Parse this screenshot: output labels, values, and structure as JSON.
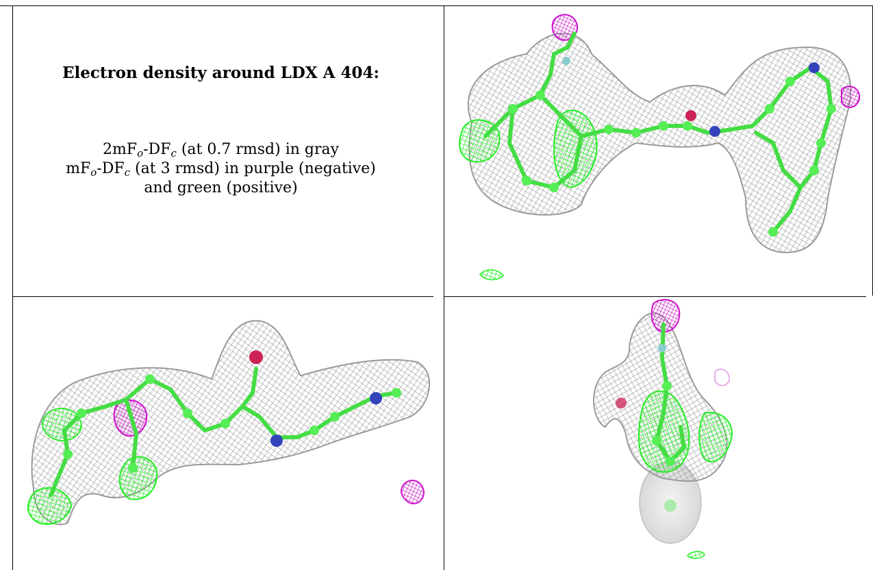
{
  "caption": {
    "title": "Electron density around LDX A 404:",
    "line1": [
      {
        "t": "2mF"
      },
      {
        "s": "o"
      },
      {
        "t": "-DF"
      },
      {
        "s": "c"
      },
      {
        "t": " (at 0.7 rmsd) in gray"
      }
    ],
    "line2": [
      {
        "t": "mF"
      },
      {
        "s": "o"
      },
      {
        "t": "-DF"
      },
      {
        "s": "c"
      },
      {
        "t": " (at 3 rmsd) in purple (negative)"
      }
    ],
    "line3": [
      {
        "t": "and green (positive)"
      }
    ]
  },
  "colors": {
    "mesh_gray": "#8a8a8a",
    "mesh_green": "#22ee22",
    "mesh_purple": "#cc11cc",
    "carbon": "#55ee55",
    "nitrogen": "#3344bb",
    "oxygen": "#cc2255",
    "fluorine": "#88cccc"
  },
  "views": [
    {
      "name": "top-right-view"
    },
    {
      "name": "bottom-left-view"
    },
    {
      "name": "bottom-right-view"
    }
  ]
}
